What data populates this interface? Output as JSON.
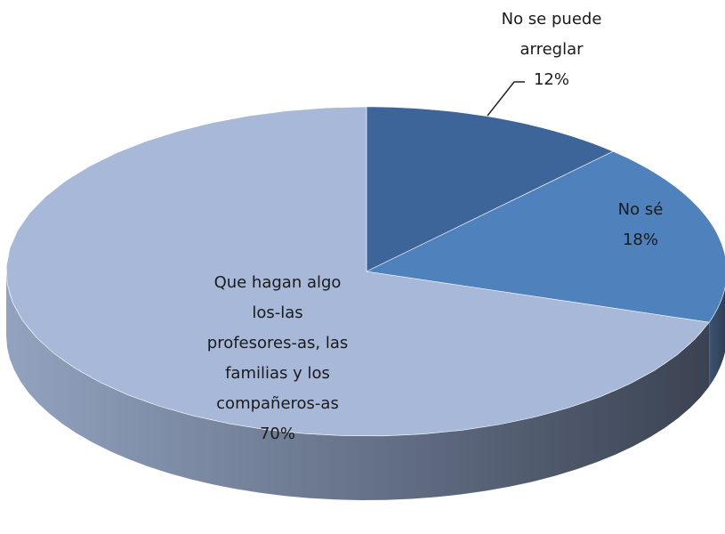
{
  "chart_data": {
    "type": "pie",
    "categories": [
      "No se puede arreglar",
      "No sé",
      "Que hagan algo los-las profesores-as, las familias y los compañeros-as"
    ],
    "values": [
      12,
      18,
      70
    ],
    "value_labels": [
      "12%",
      "18%",
      "70%"
    ],
    "colors": [
      "#3d6599",
      "#4f81bd",
      "#a8b8d8"
    ]
  }
}
